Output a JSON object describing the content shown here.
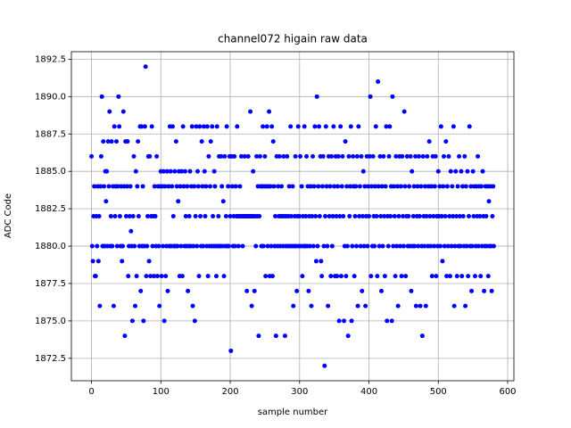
{
  "chart_data": {
    "type": "scatter",
    "title": "channel072 higain raw data",
    "xlabel": "sample number",
    "ylabel": "ADC Code",
    "color": "#0000ff",
    "grid": true,
    "xlim": [
      -29,
      609
    ],
    "ylim": [
      1871,
      1893
    ],
    "xticks": [
      0,
      100,
      200,
      300,
      400,
      500,
      600
    ],
    "yticks": [
      1872.5,
      {
        "value": 1875,
        "label": "1875.0"
      },
      1877.5,
      {
        "value": 1880,
        "label": "1880.0"
      },
      1882.5,
      {
        "value": 1885,
        "label": "1885.0"
      },
      1887.5,
      {
        "value": 1890,
        "label": "1890.0"
      },
      1892.5
    ],
    "x": [
      0,
      1,
      2,
      3,
      4,
      5,
      6,
      7,
      8,
      9,
      10,
      11,
      12,
      13,
      14,
      15,
      16,
      17,
      18,
      19,
      20,
      21,
      22,
      23,
      24,
      25,
      26,
      27,
      28,
      29,
      30,
      31,
      32,
      33,
      34,
      35,
      36,
      37,
      38,
      39,
      40,
      41,
      42,
      43,
      44,
      45,
      46,
      47,
      48,
      49,
      50,
      51,
      52,
      53,
      54,
      55,
      56,
      57,
      58,
      59,
      60,
      61,
      62,
      63,
      64,
      65,
      66,
      67,
      68,
      69,
      70,
      71,
      72,
      73,
      74,
      75,
      76,
      77,
      78,
      79,
      80,
      81,
      82,
      83,
      84,
      85,
      86,
      87,
      88,
      89,
      90,
      91,
      92,
      93,
      94,
      95,
      96,
      97,
      98,
      99,
      100,
      101,
      102,
      103,
      104,
      105,
      106,
      107,
      108,
      109,
      110,
      111,
      112,
      113,
      114,
      115,
      116,
      117,
      118,
      119,
      120,
      121,
      122,
      123,
      124,
      125,
      126,
      127,
      128,
      129,
      130,
      131,
      132,
      133,
      134,
      135,
      136,
      137,
      138,
      139,
      140,
      141,
      142,
      143,
      144,
      145,
      146,
      147,
      148,
      149,
      150,
      151,
      152,
      153,
      154,
      155,
      156,
      157,
      158,
      159,
      160,
      161,
      162,
      163,
      164,
      165,
      166,
      167,
      168,
      169,
      170,
      171,
      172,
      173,
      174,
      175,
      176,
      177,
      178,
      179,
      180,
      181,
      182,
      183,
      184,
      185,
      186,
      187,
      188,
      189,
      190,
      191,
      192,
      193,
      194,
      195,
      196,
      197,
      198,
      199,
      200,
      201,
      202,
      203,
      204,
      205,
      206,
      207,
      208,
      209,
      210,
      211,
      212,
      213,
      214,
      215,
      216,
      217,
      218,
      219,
      220,
      221,
      222,
      223,
      224,
      225,
      226,
      227,
      228,
      229,
      230,
      231,
      232,
      233,
      234,
      235,
      236,
      237,
      238,
      239,
      240,
      241,
      242,
      243,
      244,
      245,
      246,
      247,
      248,
      249,
      250,
      251,
      252,
      253,
      254,
      255,
      256,
      257,
      258,
      259,
      260,
      261,
      262,
      263,
      264,
      265,
      266,
      267,
      268,
      269,
      270,
      271,
      272,
      273,
      274,
      275,
      276,
      277,
      278,
      279,
      280,
      281,
      282,
      283,
      284,
      285,
      286,
      287,
      288,
      289,
      290,
      291,
      292,
      293,
      294,
      295,
      296,
      297,
      298,
      299,
      300,
      301,
      302,
      303,
      304,
      305,
      306,
      307,
      308,
      309,
      310,
      311,
      312,
      313,
      314,
      315,
      316,
      317,
      318,
      319,
      320,
      321,
      322,
      323,
      324,
      325,
      326,
      327,
      328,
      329,
      330,
      331,
      332,
      333,
      334,
      335,
      336,
      337,
      338,
      339,
      340,
      341,
      342,
      343,
      344,
      345,
      346,
      347,
      348,
      349,
      350,
      351,
      352,
      353,
      354,
      355,
      356,
      357,
      358,
      359,
      360,
      361,
      362,
      363,
      364,
      365,
      366,
      367,
      368,
      369,
      370,
      371,
      372,
      373,
      374,
      375,
      376,
      377,
      378,
      379,
      380,
      381,
      382,
      383,
      384,
      385,
      386,
      387,
      388,
      389,
      390,
      391,
      392,
      393,
      394,
      395,
      396,
      397,
      398,
      399,
      400,
      401,
      402,
      403,
      404,
      405,
      406,
      407,
      408,
      409,
      410,
      411,
      412,
      413,
      414,
      415,
      416,
      417,
      418,
      419,
      420,
      421,
      422,
      423,
      424,
      425,
      426,
      427,
      428,
      429,
      430,
      431,
      432,
      433,
      434,
      435,
      436,
      437,
      438,
      439,
      440,
      441,
      442,
      443,
      444,
      445,
      446,
      447,
      448,
      449,
      450,
      451,
      452,
      453,
      454,
      455,
      456,
      457,
      458,
      459,
      460,
      461,
      462,
      463,
      464,
      465,
      466,
      467,
      468,
      469,
      470,
      471,
      472,
      473,
      474,
      475,
      476,
      477,
      478,
      479,
      480,
      481,
      482,
      483,
      484,
      485,
      486,
      487,
      488,
      489,
      490,
      491,
      492,
      493,
      494,
      495,
      496,
      497,
      498,
      499,
      500,
      501,
      502,
      503,
      504,
      505,
      506,
      507,
      508,
      509,
      510,
      511,
      512,
      513,
      514,
      515,
      516,
      517,
      518,
      519,
      520,
      521,
      522,
      523,
      524,
      525,
      526,
      527,
      528,
      529,
      530,
      531,
      532,
      533,
      534,
      535,
      536,
      537,
      538,
      539,
      540,
      541,
      542,
      543,
      544,
      545,
      546,
      547,
      548,
      549,
      550,
      551,
      552,
      553,
      554,
      555,
      556,
      557,
      558,
      559,
      560,
      561,
      562,
      563,
      564,
      565,
      566,
      567,
      568,
      569,
      570,
      571,
      572,
      573,
      574,
      575,
      576,
      577,
      578,
      579,
      580
    ],
    "values": [
      1886,
      1880,
      1879,
      1882,
      1884,
      1878,
      1878,
      1882,
      1880,
      1884,
      1879,
      1882,
      1876,
      1884,
      1886,
      1890,
      1880,
      1887,
      1884,
      1880,
      1885,
      1883,
      1885,
      1880,
      1887,
      1884,
      1889,
      1880,
      1882,
      1887,
      1880,
      1884,
      1876,
      1888,
      1882,
      1884,
      1887,
      1880,
      1884,
      1890,
      1888,
      1882,
      1880,
      1884,
      1879,
      1880,
      1889,
      1884,
      1874,
      1887,
      1882,
      1884,
      1887,
      1878,
      1880,
      1882,
      1884,
      1881,
      1880,
      1875,
      1882,
      1886,
      1880,
      1876,
      1885,
      1878,
      1884,
      1887,
      1882,
      1880,
      1888,
      1877,
      1888,
      1880,
      1884,
      1875,
      1880,
      1888,
      1892,
      1878,
      1880,
      1882,
      1886,
      1879,
      1886,
      1878,
      1882,
      1888,
      1880,
      1882,
      1878,
      1884,
      1882,
      1880,
      1886,
      1878,
      1884,
      1880,
      1876,
      1884,
      1885,
      1878,
      1884,
      1880,
      1885,
      1875,
      1884,
      1878,
      1880,
      1885,
      1877,
      1884,
      1880,
      1888,
      1885,
      1880,
      1884,
      1888,
      1882,
      1880,
      1885,
      1880,
      1887,
      1884,
      1880,
      1883,
      1885,
      1878,
      1884,
      1880,
      1885,
      1878,
      1888,
      1884,
      1880,
      1885,
      1882,
      1880,
      1884,
      1877,
      1880,
      1882,
      1885,
      1880,
      1884,
      1888,
      1876,
      1880,
      1884,
      1875,
      1882,
      1888,
      1880,
      1885,
      1884,
      1878,
      1888,
      1882,
      1880,
      1887,
      1884,
      1880,
      1888,
      1885,
      1882,
      1884,
      1880,
      1888,
      1878,
      1886,
      1880,
      1884,
      1887,
      1880,
      1888,
      1882,
      1880,
      1885,
      1884,
      1880,
      1878,
      1888,
      1880,
      1882,
      1886,
      1880,
      1880,
      1886,
      1884,
      1880,
      1883,
      1878,
      1886,
      1880,
      1882,
      1888,
      1880,
      1884,
      1880,
      1886,
      1882,
      1873,
      1886,
      1884,
      1880,
      1882,
      1886,
      1880,
      1884,
      1882,
      1888,
      1882,
      1880,
      1882,
      1884,
      1882,
      1886,
      1882,
      1880,
      1882,
      1882,
      1886,
      1882,
      1882,
      1877,
      1882,
      1886,
      1882,
      1882,
      1889,
      1882,
      1876,
      1882,
      1885,
      1882,
      1877,
      1882,
      1880,
      1886,
      1882,
      1884,
      1874,
      1882,
      1886,
      1884,
      1880,
      1884,
      1888,
      1880,
      1884,
      1886,
      1878,
      1884,
      1888,
      1880,
      1884,
      1889,
      1878,
      1884,
      1880,
      1888,
      1878,
      1887,
      1884,
      1880,
      1882,
      1874,
      1886,
      1880,
      1884,
      1882,
      1886,
      1880,
      1882,
      1884,
      1882,
      1880,
      1886,
      1882,
      1874,
      1880,
      1882,
      1886,
      1880,
      1882,
      1884,
      1880,
      1888,
      1882,
      1880,
      1884,
      1876,
      1880,
      1882,
      1886,
      1880,
      1877,
      1882,
      1888,
      1880,
      1882,
      1886,
      1880,
      1884,
      1878,
      1882,
      1880,
      1888,
      1880,
      1882,
      1886,
      1880,
      1884,
      1877,
      1882,
      1880,
      1884,
      1876,
      1882,
      1886,
      1880,
      1884,
      1888,
      1882,
      1879,
      1890,
      1880,
      1884,
      1888,
      1882,
      1886,
      1879,
      1878,
      1884,
      1886,
      1880,
      1872,
      1882,
      1888,
      1884,
      1880,
      1876,
      1886,
      1882,
      1884,
      1878,
      1886,
      1880,
      1882,
      1888,
      1884,
      1878,
      1886,
      1882,
      1878,
      1884,
      1886,
      1875,
      1882,
      1888,
      1878,
      1884,
      1886,
      1882,
      1875,
      1880,
      1887,
      1878,
      1884,
      1880,
      1874,
      1886,
      1882,
      1884,
      1888,
      1875,
      1880,
      1886,
      1884,
      1878,
      1882,
      1884,
      1880,
      1886,
      1876,
      1888,
      1882,
      1884,
      1880,
      1886,
      1877,
      1882,
      1885,
      1880,
      1884,
      1876,
      1882,
      1886,
      1880,
      1884,
      1882,
      1886,
      1890,
      1878,
      1884,
      1880,
      1886,
      1882,
      1880,
      1884,
      1888,
      1882,
      1878,
      1891,
      1884,
      1880,
      1886,
      1882,
      1877,
      1884,
      1880,
      1886,
      1882,
      1878,
      1884,
      1888,
      1875,
      1882,
      1880,
      1886,
      1888,
      1882,
      1884,
      1875,
      1890,
      1880,
      1884,
      1882,
      1878,
      1886,
      1880,
      1884,
      1876,
      1882,
      1886,
      1880,
      1884,
      1878,
      1886,
      1882,
      1880,
      1889,
      1884,
      1878,
      1882,
      1886,
      1880,
      1882,
      1884,
      1880,
      1886,
      1877,
      1885,
      1880,
      1882,
      1884,
      1880,
      1886,
      1876,
      1882,
      1884,
      1880,
      1886,
      1882,
      1876,
      1884,
      1880,
      1874,
      1886,
      1882,
      1880,
      1884,
      1876,
      1882,
      1886,
      1880,
      1884,
      1887,
      1882,
      1880,
      1884,
      1878,
      1886,
      1882,
      1880,
      1884,
      1886,
      1878,
      1882,
      1880,
      1885,
      1882,
      1884,
      1880,
      1888,
      1882,
      1879,
      1884,
      1886,
      1880,
      1882,
      1887,
      1878,
      1884,
      1880,
      1886,
      1882,
      1878,
      1885,
      1880,
      1884,
      1882,
      1888,
      1876,
      1880,
      1885,
      1882,
      1878,
      1884,
      1880,
      1886,
      1882,
      1880,
      1885,
      1878,
      1884,
      1882,
      1880,
      1886,
      1876,
      1884,
      1880,
      1885,
      1878,
      1882,
      1888,
      1880,
      1884,
      1877,
      1880,
      1885,
      1882,
      1884,
      1878,
      1880,
      1884,
      1882,
      1886,
      1880,
      1884,
      1882,
      1878,
      1884,
      1880,
      1885,
      1882,
      1877,
      1880,
      1884,
      1882,
      1880,
      1884,
      1878,
      1883,
      1880,
      1884,
      1880,
      1877,
      1882,
      1884,
      1880
    ]
  }
}
